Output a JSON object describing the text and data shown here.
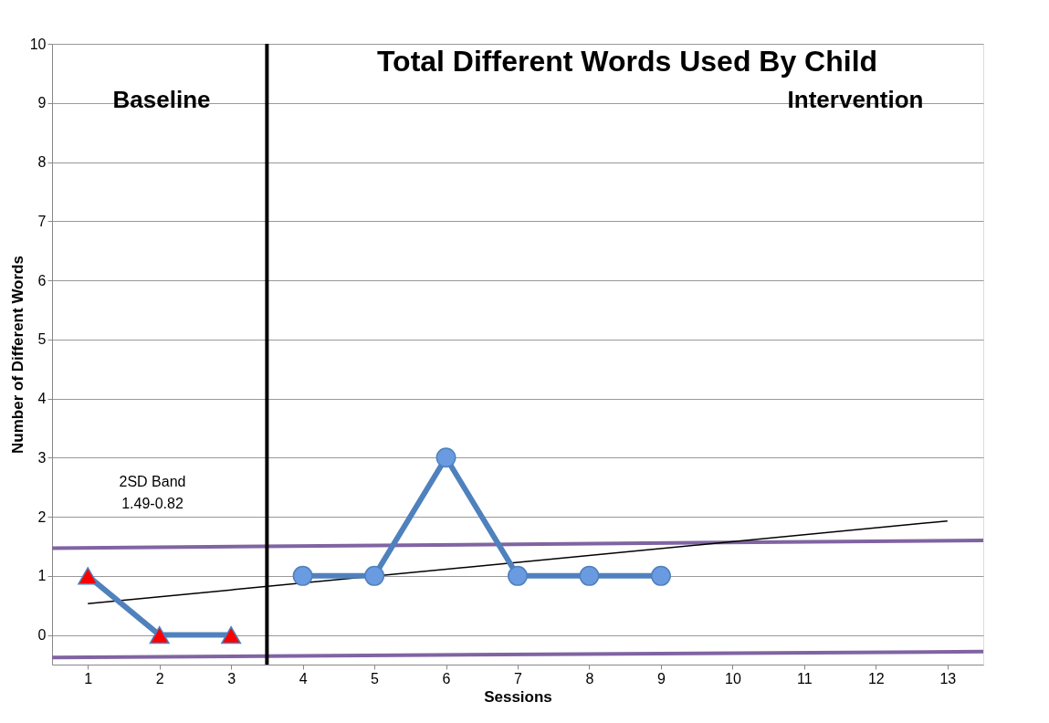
{
  "chart_data": {
    "type": "line",
    "title": "Total Different Words Used By Child",
    "xlabel": "Sessions",
    "ylabel": "Number of Different Words",
    "xlim": [
      0.5,
      13.5
    ],
    "xticks": [
      1,
      2,
      3,
      4,
      5,
      6,
      7,
      8,
      9,
      10,
      11,
      12,
      13
    ],
    "ylim": [
      -0.5,
      10
    ],
    "yticks": [
      0,
      1,
      2,
      3,
      4,
      5,
      6,
      7,
      8,
      9,
      10
    ],
    "grid": "y",
    "series": [
      {
        "x": [
          0.5,
          13.5
        ],
        "values": [
          1.47,
          1.6
        ],
        "color": "#8064a2",
        "marker": "none"
      },
      {
        "x": [
          0.5,
          13.5
        ],
        "values": [
          -0.38,
          -0.28
        ],
        "color": "#8064a2",
        "marker": "none"
      },
      {
        "x": [
          1,
          13
        ],
        "values": [
          0.53,
          1.93
        ],
        "color": "#000000",
        "marker": "none"
      },
      {
        "x": [
          1,
          2,
          3
        ],
        "values": [
          1,
          0,
          0
        ],
        "color": "#4f81bd",
        "marker": "triangle",
        "colors": [
          "#ff0000",
          "#ff0000",
          "#ff0000"
        ]
      },
      {
        "x": [
          4,
          5,
          6,
          7,
          8,
          9
        ],
        "values": [
          1,
          1,
          3,
          1,
          1,
          1
        ],
        "color": "#4f81bd",
        "marker": "circle",
        "colors": [
          "#6a9be0",
          "#6a9be0",
          "#6a9be0",
          "#6a9be0",
          "#6a9be0",
          "#6a9be0"
        ]
      }
    ],
    "ref_lines": [
      {
        "axis": "x",
        "value": 3.5,
        "color": "#000000"
      }
    ],
    "annotations": [
      "Baseline",
      "Intervention",
      "2SD Band",
      "1.49-0.82"
    ]
  }
}
